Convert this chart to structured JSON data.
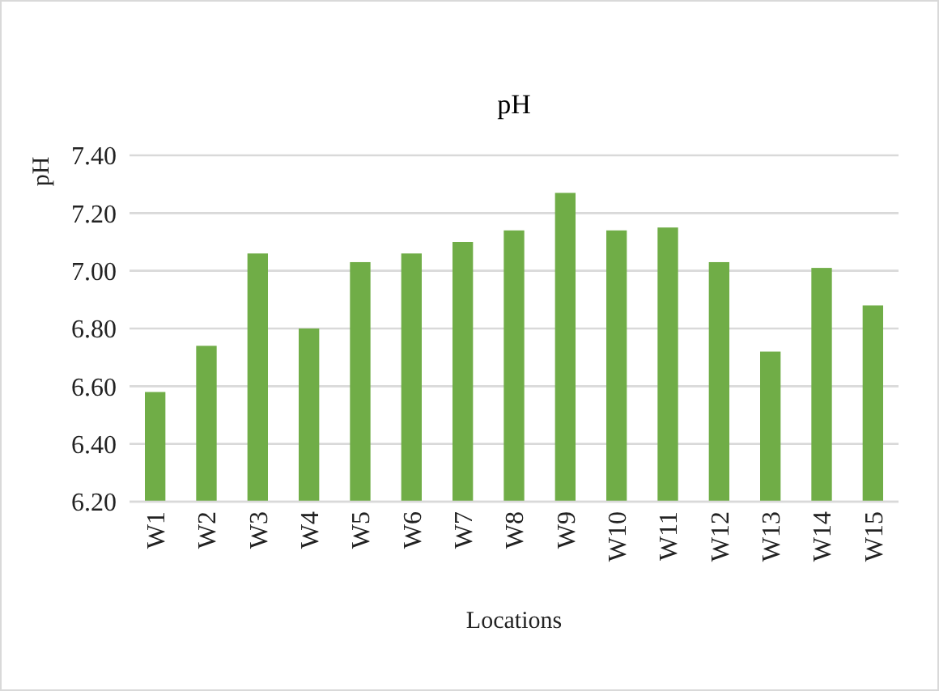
{
  "chart_data": {
    "type": "bar",
    "title": "pH",
    "xlabel": "Locations",
    "ylabel": "pH",
    "categories": [
      "W1",
      "W2",
      "W3",
      "W4",
      "W5",
      "W6",
      "W7",
      "W8",
      "W9",
      "W10",
      "W11",
      "W12",
      "W13",
      "W14",
      "W15"
    ],
    "values": [
      6.58,
      6.74,
      7.06,
      6.8,
      7.03,
      7.06,
      7.1,
      7.14,
      7.27,
      7.14,
      7.15,
      7.03,
      6.72,
      7.01,
      6.88
    ],
    "color": "#70ad47",
    "ylim": [
      6.2,
      7.4
    ],
    "yticks": [
      {
        "value": 6.2,
        "label": "6.20"
      },
      {
        "value": 6.4,
        "label": "6.40"
      },
      {
        "value": 6.6,
        "label": "6.60"
      },
      {
        "value": 6.8,
        "label": "6.80"
      },
      {
        "value": 7.0,
        "label": "7.00"
      },
      {
        "value": 7.2,
        "label": "7.20"
      },
      {
        "value": 7.4,
        "label": "7.40"
      }
    ],
    "grid": "y"
  }
}
